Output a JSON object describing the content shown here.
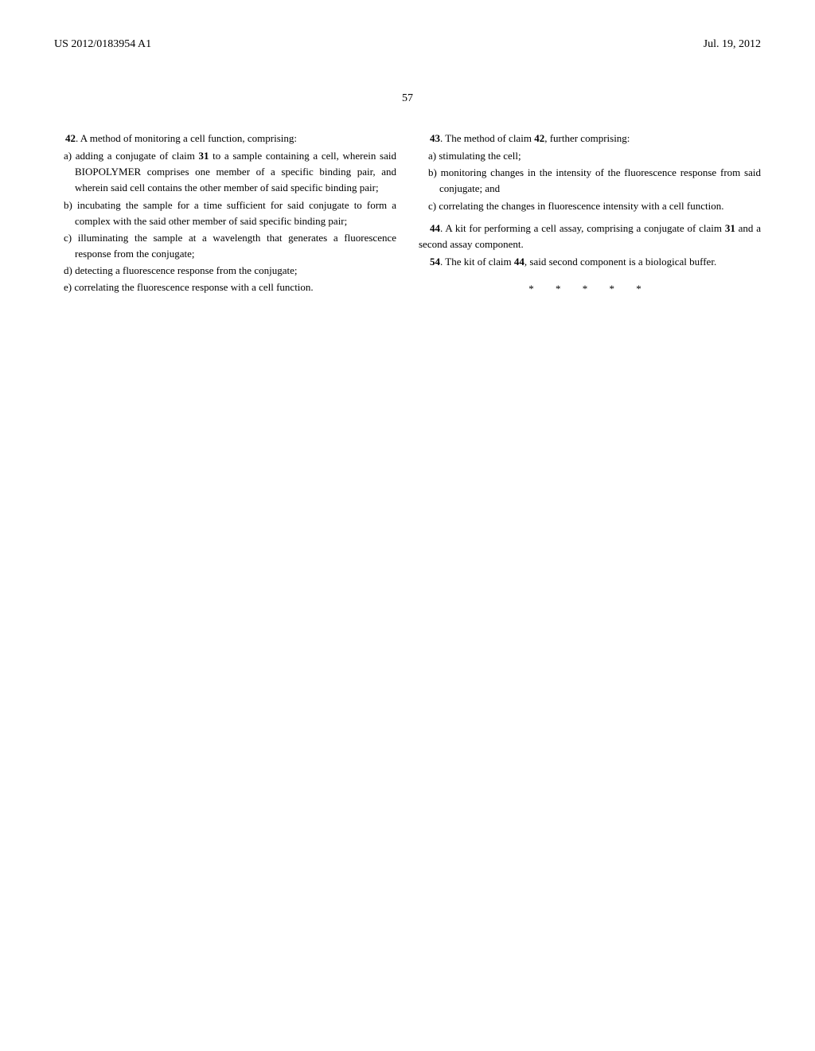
{
  "header": {
    "pub_number": "US 2012/0183954 A1",
    "pub_date": "Jul. 19, 2012"
  },
  "page_number": "57",
  "left_column": {
    "claim42": {
      "intro_num": "42",
      "intro_text": ". A method of monitoring a cell function, comprising:",
      "items": [
        "a) adding a conjugate of claim ",
        "b) incubating the sample for a time sufficient for said conjugate to form a complex with the said other member of said specific binding pair;",
        "c) illuminating the sample at a wavelength that generates a fluorescence response from the conjugate;",
        "d) detecting a fluorescence response from the conjugate;",
        "e) correlating the fluorescence response with a cell function."
      ],
      "item_a_ref": "31",
      "item_a_tail": " to a sample containing a cell, wherein said BIOPOLYMER comprises one member of a specific binding pair, and wherein said cell contains the other member of said specific binding pair;"
    }
  },
  "right_column": {
    "claim43": {
      "intro_num": "43",
      "intro_text": ". The method of claim ",
      "intro_ref": "42",
      "intro_tail": ", further comprising:",
      "items": [
        "a) stimulating the cell;",
        "b) monitoring changes in the intensity of the fluorescence response from said conjugate; and",
        "c) correlating the changes in fluorescence intensity with a cell function."
      ]
    },
    "claim44": {
      "num": "44",
      "text_before": ". A kit for performing a cell assay, comprising a conjugate of claim ",
      "ref": "31",
      "text_after": " and a second assay component."
    },
    "claim54": {
      "num": "54",
      "text_before": ". The kit of claim ",
      "ref": "44",
      "text_after": ", said second component is a biological buffer."
    }
  },
  "end_mark": "*   *   *   *   *"
}
